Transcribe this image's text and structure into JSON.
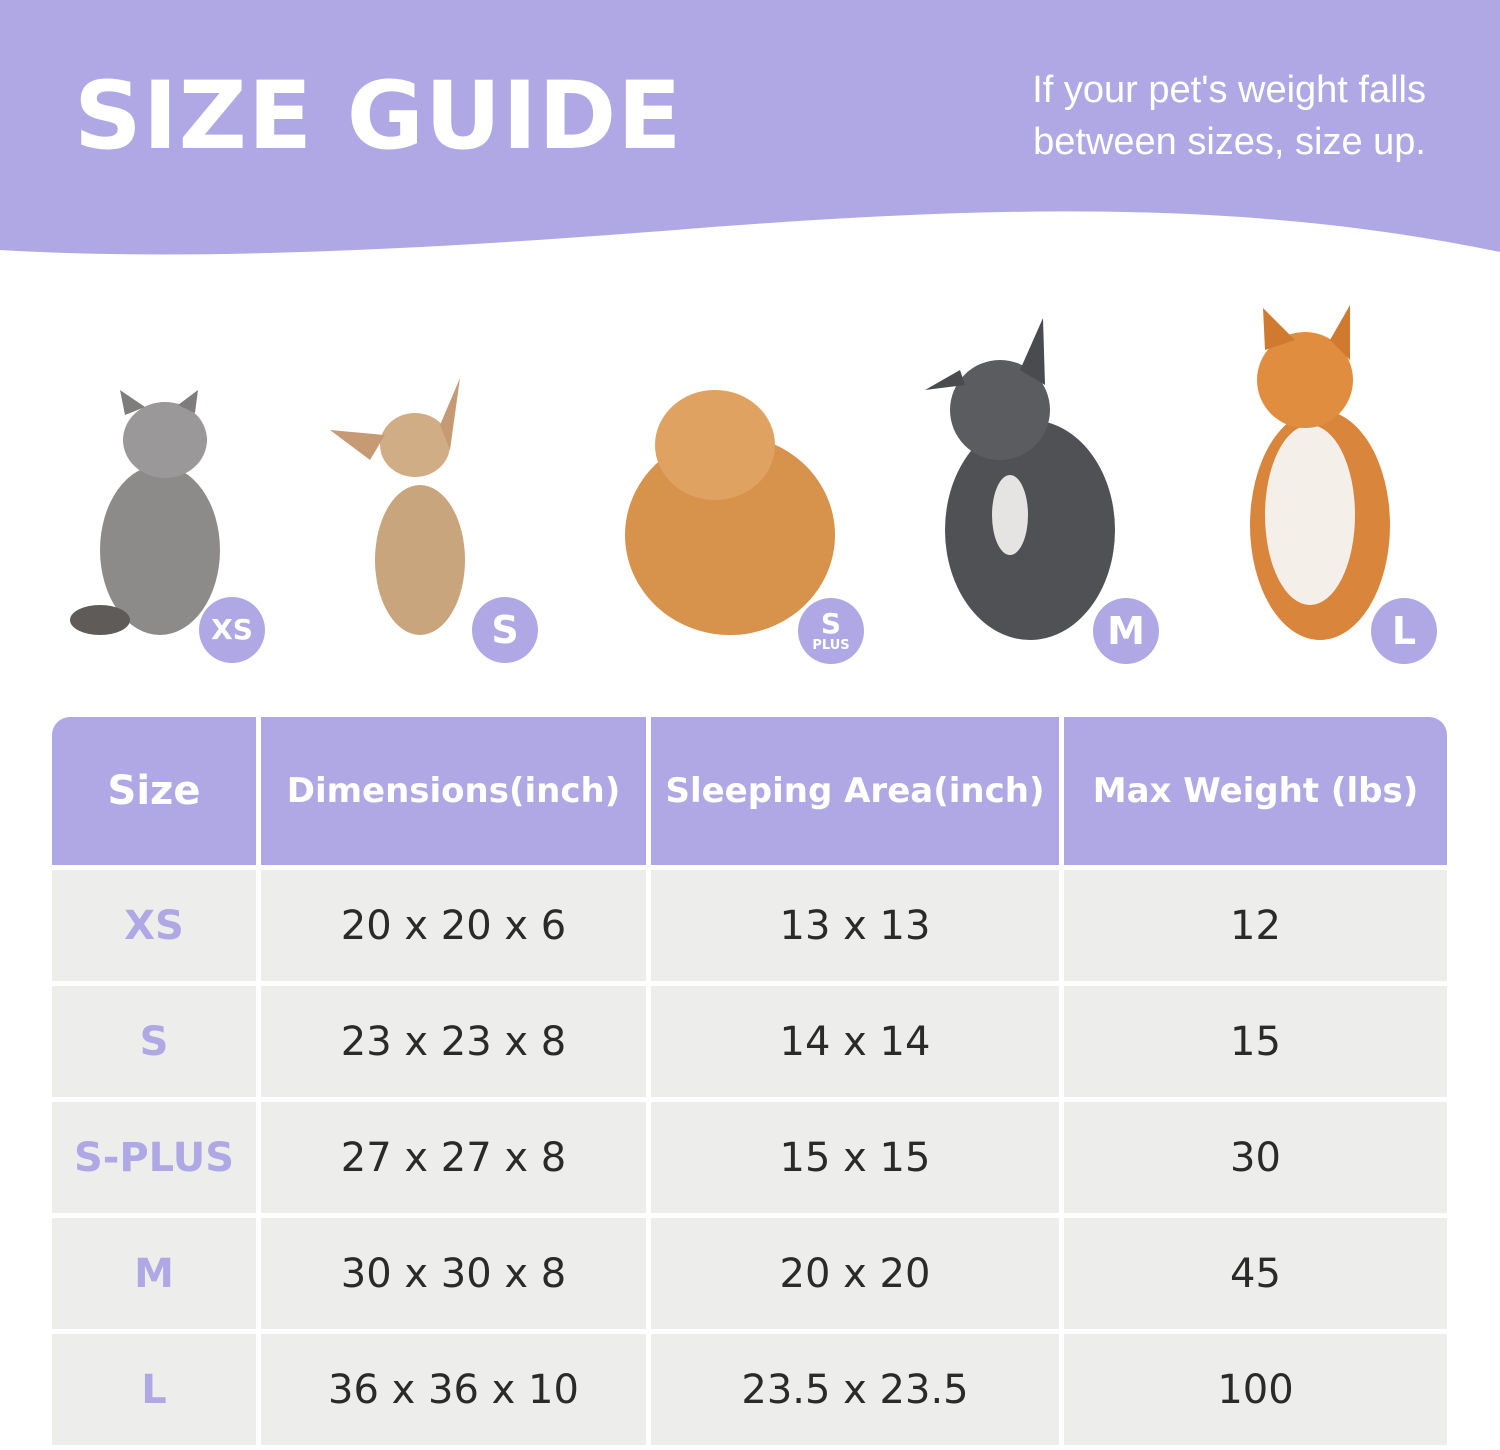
{
  "header": {
    "title": "SIZE GUIDE",
    "subtitle_line1": "If your pet's weight falls",
    "subtitle_line2": "between sizes, size up."
  },
  "colors": {
    "accent": "#b0a8e4",
    "row_background": "#edeeec",
    "text": "#2a2a2a"
  },
  "pets": [
    {
      "animal": "gray cat",
      "badge": "XS"
    },
    {
      "animal": "chihuahua",
      "badge": "S"
    },
    {
      "animal": "pomeranian",
      "badge": "S",
      "badge_sub": "PLUS"
    },
    {
      "animal": "french bulldog",
      "badge": "M"
    },
    {
      "animal": "shiba inu",
      "badge": "L"
    }
  ],
  "table": {
    "headers": [
      "Size",
      "Dimensions(inch)",
      "Sleeping Area(inch)",
      "Max Weight (lbs)"
    ],
    "rows": [
      [
        "XS",
        "20 x 20 x 6",
        "13 x 13",
        "12"
      ],
      [
        "S",
        "23 x 23 x 8",
        "14 x 14",
        "15"
      ],
      [
        "S-PLUS",
        "27 x 27 x 8",
        "15 x 15",
        "30"
      ],
      [
        "M",
        "30 x 30 x 8",
        "20 x 20",
        "45"
      ],
      [
        "L",
        "36 x 36 x 10",
        "23.5 x 23.5",
        "100"
      ]
    ]
  }
}
